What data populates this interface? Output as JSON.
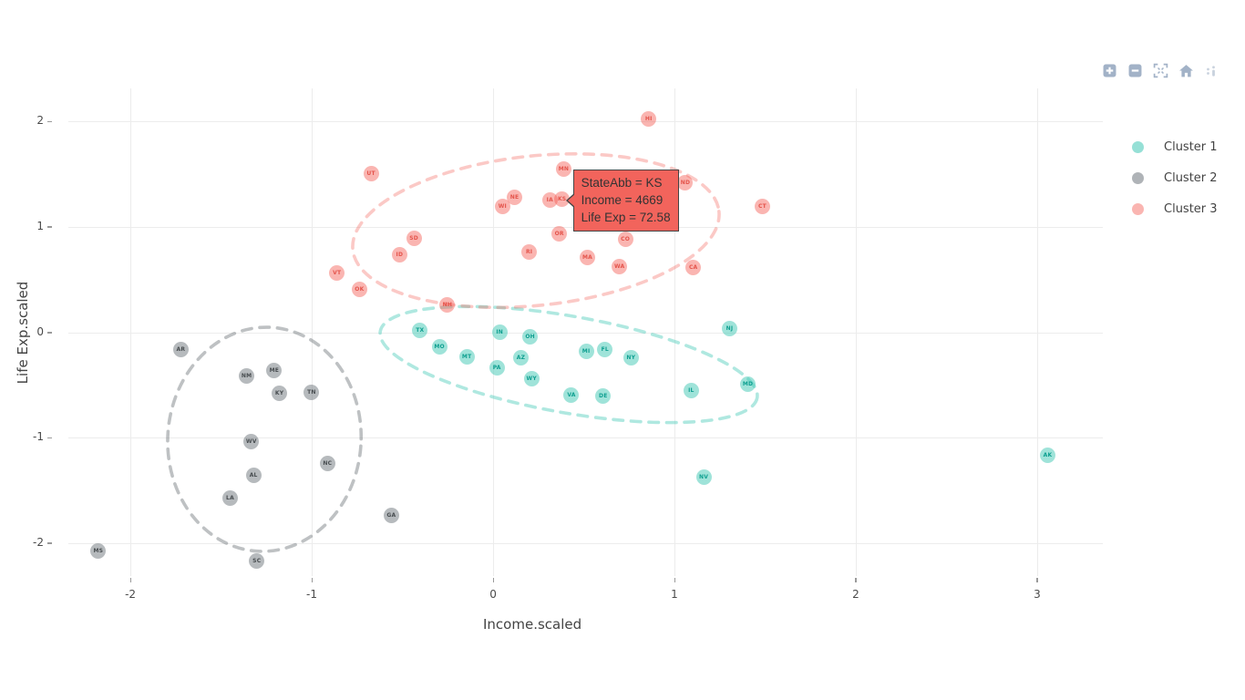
{
  "modebar": {
    "icons": [
      {
        "name": "zoom-in"
      },
      {
        "name": "zoom-out"
      },
      {
        "name": "autoscale"
      },
      {
        "name": "reset-axes-home"
      },
      {
        "name": "plotly-logo"
      }
    ]
  },
  "legend": {
    "items": [
      {
        "label": "Cluster 1",
        "color": "rgba(64,199,180,0.55)"
      },
      {
        "label": "Cluster 2",
        "color": "rgba(110,117,123,0.55)"
      },
      {
        "label": "Cluster 3",
        "color": "rgba(244,90,82,0.45)"
      }
    ]
  },
  "chart_data": {
    "type": "scatter",
    "title": "",
    "xlabel": "Income.scaled",
    "ylabel": "Life Exp.scaled",
    "xlim": [
      -2.342,
      3.362
    ],
    "ylim": [
      -2.316,
      2.316
    ],
    "xticks": [
      "-2",
      "-1",
      "0",
      "1",
      "2",
      "3"
    ],
    "yticks": [
      "-2",
      "-1",
      "0",
      "1",
      "2"
    ],
    "grid": true,
    "legend_position": "right",
    "series": [
      {
        "name": "Cluster 1",
        "marker_color": "rgba(64,199,180,0.5)",
        "label_color": "#0e9f90",
        "points": [
          {
            "label": "TX",
            "x": -0.403,
            "y": 0.016
          },
          {
            "label": "IN",
            "x": 0.036,
            "y": 0.001
          },
          {
            "label": "OH",
            "x": 0.204,
            "y": -0.044
          },
          {
            "label": "MO",
            "x": -0.296,
            "y": -0.14
          },
          {
            "label": "MT",
            "x": -0.145,
            "y": -0.237
          },
          {
            "label": "AZ",
            "x": 0.153,
            "y": -0.245
          },
          {
            "label": "PA",
            "x": 0.021,
            "y": -0.334
          },
          {
            "label": "WY",
            "x": 0.212,
            "y": -0.438
          },
          {
            "label": "MI",
            "x": 0.513,
            "y": -0.185
          },
          {
            "label": "FL",
            "x": 0.617,
            "y": -0.163
          },
          {
            "label": "NY",
            "x": 0.76,
            "y": -0.245
          },
          {
            "label": "VA",
            "x": 0.432,
            "y": -0.595
          },
          {
            "label": "DE",
            "x": 0.607,
            "y": -0.61
          },
          {
            "label": "NJ",
            "x": 1.304,
            "y": 0.038
          },
          {
            "label": "IL",
            "x": 1.092,
            "y": -0.55
          },
          {
            "label": "MD",
            "x": 1.405,
            "y": -0.491
          },
          {
            "label": "NV",
            "x": 1.161,
            "y": -1.377
          },
          {
            "label": "AK",
            "x": 3.058,
            "y": -1.168
          }
        ]
      },
      {
        "name": "Cluster 2",
        "marker_color": "rgba(110,117,123,0.5)",
        "label_color": "#474c4f",
        "points": [
          {
            "label": "AR",
            "x": -1.722,
            "y": -0.163
          },
          {
            "label": "ME",
            "x": -1.207,
            "y": -0.364
          },
          {
            "label": "NM",
            "x": -1.359,
            "y": -0.416
          },
          {
            "label": "KY",
            "x": -1.178,
            "y": -0.58
          },
          {
            "label": "TN",
            "x": -1.001,
            "y": -0.572
          },
          {
            "label": "WV",
            "x": -1.333,
            "y": -1.042
          },
          {
            "label": "NC",
            "x": -0.913,
            "y": -1.243
          },
          {
            "label": "AL",
            "x": -1.321,
            "y": -1.362
          },
          {
            "label": "LA",
            "x": -1.45,
            "y": -1.578
          },
          {
            "label": "GA",
            "x": -0.561,
            "y": -1.742
          },
          {
            "label": "MS",
            "x": -2.177,
            "y": -2.077
          },
          {
            "label": "SC",
            "x": -1.303,
            "y": -2.174
          }
        ]
      },
      {
        "name": "Cluster 3",
        "marker_color": "rgba(244,90,82,0.45)",
        "label_color": "#e4544b",
        "points": [
          {
            "label": "UT",
            "x": -0.673,
            "y": 1.506
          },
          {
            "label": "MN",
            "x": 0.389,
            "y": 1.551
          },
          {
            "label": "ND",
            "x": 1.06,
            "y": 1.416
          },
          {
            "label": "CT",
            "x": 1.485,
            "y": 1.193
          },
          {
            "label": "NE",
            "x": 0.118,
            "y": 1.282
          },
          {
            "label": "KS",
            "x": 0.38,
            "y": 1.267
          },
          {
            "label": "IA",
            "x": 0.313,
            "y": 1.253
          },
          {
            "label": "WI",
            "x": 0.052,
            "y": 1.193
          },
          {
            "label": "SD",
            "x": -0.437,
            "y": 0.895
          },
          {
            "label": "ID",
            "x": -0.516,
            "y": 0.738
          },
          {
            "label": "VT",
            "x": -0.861,
            "y": 0.567
          },
          {
            "label": "OK",
            "x": -0.737,
            "y": 0.403
          },
          {
            "label": "NH",
            "x": -0.252,
            "y": 0.262
          },
          {
            "label": "RI",
            "x": 0.199,
            "y": 0.761
          },
          {
            "label": "OR",
            "x": 0.365,
            "y": 0.932
          },
          {
            "label": "MA",
            "x": 0.52,
            "y": 0.709
          },
          {
            "label": "CO",
            "x": 0.729,
            "y": 0.88
          },
          {
            "label": "WA",
            "x": 0.697,
            "y": 0.627
          },
          {
            "label": "CA",
            "x": 1.104,
            "y": 0.619
          },
          {
            "label": "HI",
            "x": 0.858,
            "y": 2.027
          }
        ]
      }
    ],
    "ellipses": [
      {
        "cluster": "Cluster 1",
        "cx": 0.417,
        "cy": -0.307,
        "rx": 1.055,
        "ry": 0.459,
        "rot": 10,
        "stroke": "rgba(64,199,180,0.42)"
      },
      {
        "cluster": "Cluster 2",
        "cx": -1.261,
        "cy": -1.017,
        "rx": 0.533,
        "ry": 1.065,
        "rot": 4,
        "stroke": "rgba(110,117,123,0.45)"
      },
      {
        "cluster": "Cluster 3",
        "cx": 0.236,
        "cy": 0.965,
        "rx": 1.015,
        "ry": 0.71,
        "rot": -6,
        "stroke": "rgba(244,90,82,0.33)"
      }
    ],
    "tooltip": {
      "lines": [
        "StateAbb = KS",
        "Income = 4669",
        "Life Exp = 72.58"
      ],
      "target": {
        "label": "KS",
        "x": 0.38,
        "y": 1.267
      },
      "bg": "#f2645c"
    }
  }
}
